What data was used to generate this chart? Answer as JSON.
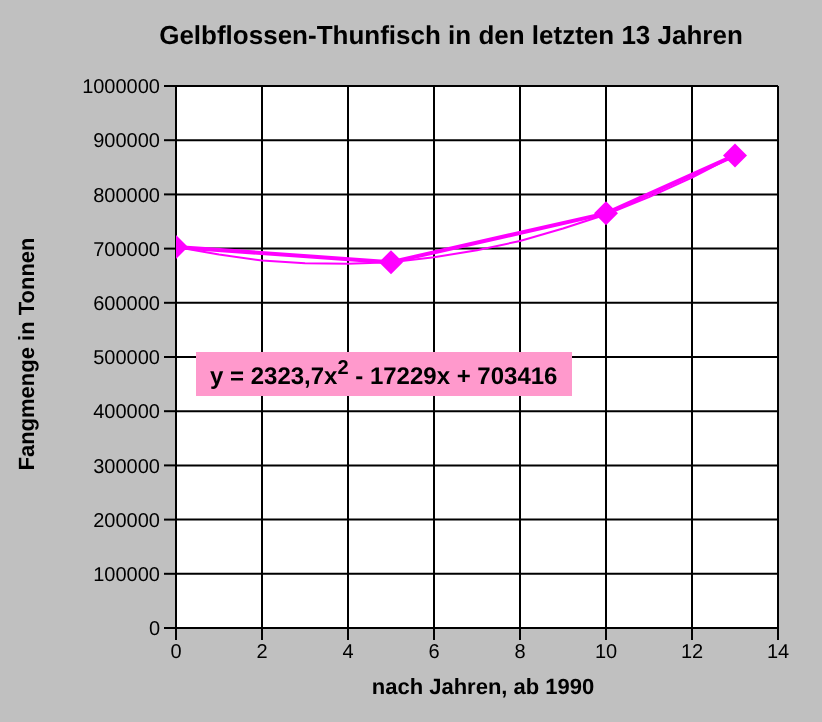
{
  "chart_data": {
    "type": "line",
    "title": "Gelbflossen-Thunfisch in den letzten 13 Jahren",
    "xlabel": "nach Jahren, ab 1990",
    "ylabel": "Fangmenge in Tonnen",
    "xlim": [
      0,
      14
    ],
    "xticks": [
      0,
      2,
      4,
      6,
      8,
      10,
      12,
      14
    ],
    "ylim": [
      0,
      1000000
    ],
    "yticks": [
      0,
      100000,
      200000,
      300000,
      400000,
      500000,
      600000,
      700000,
      800000,
      900000,
      1000000
    ],
    "grid": true,
    "legend": false,
    "series": [
      {
        "type": "line",
        "color": "#ff00ff",
        "marker": "diamond",
        "x": [
          0,
          5,
          10,
          13
        ],
        "values": [
          703000,
          675000,
          765000,
          872000
        ]
      },
      {
        "type": "line",
        "color": "#ff00ff",
        "marker": "none",
        "x": [
          0,
          1,
          2,
          3,
          4,
          5,
          6,
          7,
          8,
          9,
          10,
          11,
          12,
          13
        ],
        "values": [
          703000,
          689000,
          678000,
          673000,
          672000,
          675000,
          684000,
          697000,
          714000,
          737000,
          763000,
          795000,
          831000,
          872000
        ]
      }
    ],
    "annotations": [
      "y = 2323,7x$^{2}$ - 17229x + 703416"
    ]
  }
}
